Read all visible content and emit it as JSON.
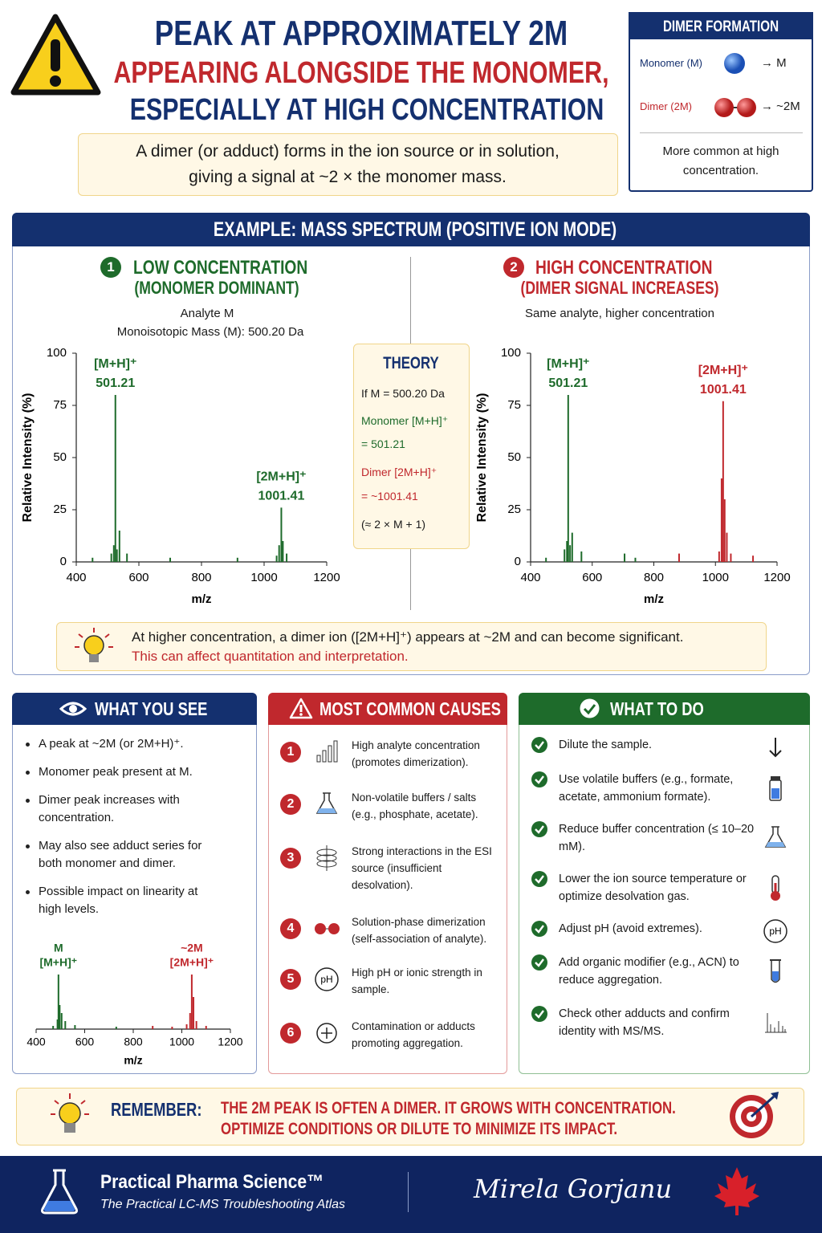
{
  "header": {
    "title": [
      "PEAK AT APPROXIMATELY 2M",
      "APPEARING ALONGSIDE THE MONOMER,",
      "ESPECIALLY AT HIGH CONCENTRATION"
    ],
    "summary": [
      "A dimer (or adduct) forms in the ion source or in solution,",
      "giving a signal at ~2 × the monomer mass."
    ]
  },
  "dimer_box": {
    "title": "DIMER FORMATION",
    "rows": [
      {
        "label": "Monomer (M)",
        "result": "→ M"
      },
      {
        "label": "Dimer (2M)",
        "result": "→ ~2M"
      }
    ],
    "note": "More common at high concentration."
  },
  "example": {
    "title": "EXAMPLE: MASS SPECTRUM (POSITIVE ION MODE)",
    "charts": [
      {
        "type": "spectrum",
        "badge": "1",
        "title": "LOW CONCENTRATION",
        "subtitle": "(MONOMER DOMINANT)",
        "notes": [
          "Analyte M",
          "Monoisotopic Mass (M): 500.20 Da"
        ],
        "x_label": "m/z",
        "y_label": "Relative Intensity (%)",
        "xlim": [
          400,
          1200
        ],
        "xticks": [
          400,
          600,
          800,
          1000,
          1200
        ],
        "ylim": [
          0,
          100
        ],
        "yticks": [
          0,
          25,
          50,
          75,
          100
        ],
        "series": [
          {
            "color": "#1e6b2b",
            "ion": "[M+H]⁺",
            "mz": 501.21,
            "x": [
              452,
              512,
              520,
              525,
              530,
              538,
              562,
              700,
              915
            ],
            "values": [
              2,
              4,
              8,
              80,
              6,
              15,
              4,
              2,
              2
            ]
          },
          {
            "color": "#1e6b2b",
            "ion": "[2M+H]⁺",
            "mz": 1001.41,
            "x": [
              1040,
              1048,
              1055,
              1060,
              1072
            ],
            "values": [
              3,
              8,
              26,
              10,
              4
            ]
          }
        ]
      },
      {
        "type": "spectrum",
        "badge": "2",
        "title": "HIGH CONCENTRATION",
        "subtitle": "(DIMER SIGNAL INCREASES)",
        "notes": [
          "Same analyte, higher concentration"
        ],
        "x_label": "m/z",
        "y_label": "Relative Intensity (%)",
        "xlim": [
          400,
          1200
        ],
        "xticks": [
          400,
          600,
          800,
          1000,
          1200
        ],
        "ylim": [
          0,
          100
        ],
        "yticks": [
          0,
          25,
          50,
          75,
          100
        ],
        "series": [
          {
            "color": "#1e6b2b",
            "ion": "[M+H]⁺",
            "mz": 501.21,
            "x": [
              450,
              510,
              518,
              522,
              528,
              535,
              565,
              705,
              740
            ],
            "values": [
              2,
              6,
              10,
              80,
              8,
              14,
              5,
              4,
              2
            ]
          },
          {
            "color": "#c0282d",
            "ion": "[2M+H]⁺",
            "mz": 1001.41,
            "x": [
              882,
              1012,
              1020,
              1025,
              1030,
              1037,
              1050,
              1122
            ],
            "values": [
              4,
              5,
              40,
              77,
              30,
              14,
              4,
              3
            ]
          }
        ]
      }
    ],
    "theory": {
      "title": "THEORY",
      "lines": [
        "If M = 500.20 Da",
        "Monomer [M+H]⁺",
        "= 501.21",
        "Dimer [2M+H]⁺",
        "= ~1001.41",
        "(≈ 2 × M + 1)"
      ]
    },
    "note": [
      "At higher concentration, a dimer ion ([2M+H]⁺) appears at ~2M and can become significant.",
      "This can affect quantitation and interpretation."
    ]
  },
  "what_you_see": {
    "title": "WHAT YOU SEE",
    "items": [
      "A peak at ~2M (or 2M+H)⁺.",
      "Monomer peak present at M.",
      "Dimer peak increases with concentration.",
      "May also see adduct series for both monomer and dimer.",
      "Possible impact on linearity at high levels."
    ],
    "chart": {
      "type": "spectrum",
      "x_label": "m/z",
      "xlim": [
        400,
        1200
      ],
      "xticks": [
        400,
        600,
        800,
        1000,
        1200
      ],
      "series": [
        {
          "color": "#1e6b2b",
          "mass": "M",
          "ion": "[M+H]⁺",
          "x": [
            470,
            488,
            492,
            497,
            505,
            520,
            560,
            730
          ],
          "values": [
            4,
            12,
            68,
            30,
            20,
            10,
            5,
            3
          ]
        },
        {
          "color": "#c0282d",
          "mass": "~2M",
          "ion": "[2M+H]⁺",
          "x": [
            880,
            960,
            1020,
            1034,
            1041,
            1048,
            1060,
            1100
          ],
          "values": [
            4,
            3,
            6,
            20,
            68,
            40,
            10,
            4
          ]
        }
      ]
    }
  },
  "causes": {
    "title": "MOST COMMON CAUSES",
    "items": [
      {
        "number": "1",
        "text": "High analyte concentration (promotes dimerization)."
      },
      {
        "number": "2",
        "text": "Non-volatile buffers / salts (e.g., phosphate, acetate)."
      },
      {
        "number": "3",
        "text": "Strong interactions in the ESI source (insufficient desolvation)."
      },
      {
        "number": "4",
        "text": "Solution-phase dimerization (self-association of analyte)."
      },
      {
        "number": "5",
        "text": "High pH or ionic strength in sample.",
        "icon_text": "pH"
      },
      {
        "number": "6",
        "text": "Contamination or adducts promoting aggregation."
      }
    ]
  },
  "what_to_do": {
    "title": "WHAT TO DO",
    "items": [
      {
        "text": "Dilute the sample."
      },
      {
        "text": "Use volatile buffers (e.g., formate, acetate, ammonium formate)."
      },
      {
        "text": "Reduce buffer concentration (≤ 10–20 mM)."
      },
      {
        "text": "Lower the ion source temperature or optimize desolvation gas."
      },
      {
        "text": "Adjust pH (avoid extremes).",
        "icon_text": "pH"
      },
      {
        "text": "Add organic modifier (e.g., ACN) to reduce aggregation."
      },
      {
        "text": "Check other adducts and confirm identity with MS/MS."
      }
    ]
  },
  "remember": {
    "label": "REMEMBER:",
    "lines": [
      "THE 2M PEAK IS OFTEN A DIMER.  IT GROWS WITH CONCENTRATION.",
      "OPTIMIZE CONDITIONS OR DILUTE TO MINIMIZE ITS IMPACT."
    ]
  },
  "footer": {
    "brand": "Practical Pharma Science™",
    "tagline": "The Practical LC-MS Troubleshooting Atlas",
    "signature": "Mirela Gorjanu"
  }
}
